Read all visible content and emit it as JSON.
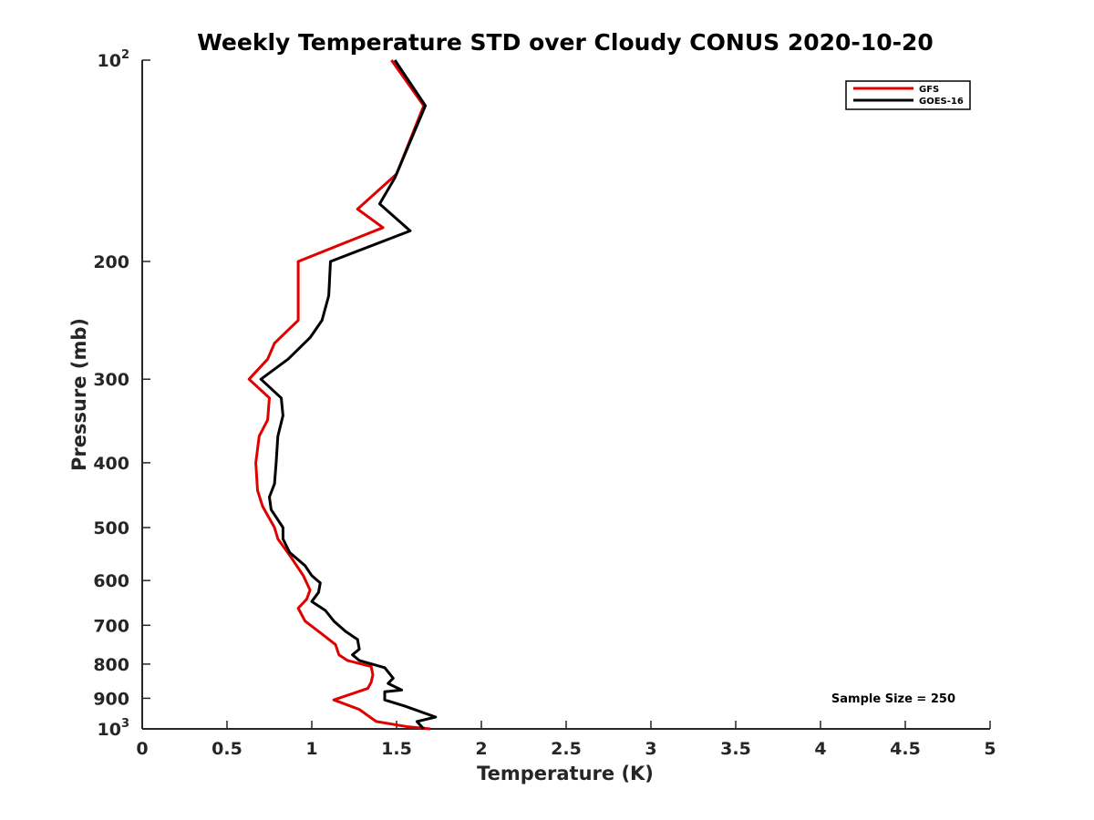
{
  "chart_data": {
    "type": "line",
    "title": "Weekly Temperature STD over Cloudy CONUS 2020-10-20",
    "xlabel": "Temperature (K)",
    "ylabel": "Pressure (mb)",
    "xlim": [
      0,
      5
    ],
    "ylim": [
      100,
      1000
    ],
    "yscale": "log",
    "y_reversed": true,
    "grid": false,
    "legend_position": "top-right",
    "x_ticks": [
      {
        "value": 0,
        "label": "0"
      },
      {
        "value": 0.5,
        "label": "0.5"
      },
      {
        "value": 1,
        "label": "1"
      },
      {
        "value": 1.5,
        "label": "1.5"
      },
      {
        "value": 2,
        "label": "2"
      },
      {
        "value": 2.5,
        "label": "2.5"
      },
      {
        "value": 3,
        "label": "3"
      },
      {
        "value": 3.5,
        "label": "3.5"
      },
      {
        "value": 4,
        "label": "4"
      },
      {
        "value": 4.5,
        "label": "4.5"
      },
      {
        "value": 5,
        "label": "5"
      }
    ],
    "y_ticks": [
      {
        "value": 100,
        "base": "10",
        "exp": "2"
      },
      {
        "value": 200,
        "base": "200",
        "exp": ""
      },
      {
        "value": 300,
        "base": "300",
        "exp": ""
      },
      {
        "value": 400,
        "base": "400",
        "exp": ""
      },
      {
        "value": 500,
        "base": "500",
        "exp": ""
      },
      {
        "value": 600,
        "base": "600",
        "exp": ""
      },
      {
        "value": 700,
        "base": "700",
        "exp": ""
      },
      {
        "value": 800,
        "base": "800",
        "exp": ""
      },
      {
        "value": 900,
        "base": "900",
        "exp": ""
      },
      {
        "value": 1000,
        "base": "10",
        "exp": "3"
      }
    ],
    "series": [
      {
        "name": "GFS",
        "color": "#e00000",
        "points": [
          [
            1.47,
            100
          ],
          [
            1.66,
            117
          ],
          [
            1.5,
            148
          ],
          [
            1.27,
            167
          ],
          [
            1.42,
            178
          ],
          [
            0.92,
            200
          ],
          [
            0.92,
            245
          ],
          [
            0.78,
            265
          ],
          [
            0.74,
            280
          ],
          [
            0.63,
            300
          ],
          [
            0.75,
            320
          ],
          [
            0.74,
            345
          ],
          [
            0.69,
            365
          ],
          [
            0.67,
            400
          ],
          [
            0.68,
            440
          ],
          [
            0.71,
            465
          ],
          [
            0.78,
            500
          ],
          [
            0.8,
            520
          ],
          [
            0.88,
            555
          ],
          [
            0.95,
            590
          ],
          [
            0.99,
            620
          ],
          [
            0.97,
            640
          ],
          [
            0.92,
            660
          ],
          [
            0.96,
            690
          ],
          [
            1.05,
            718
          ],
          [
            1.14,
            748
          ],
          [
            1.16,
            775
          ],
          [
            1.21,
            790
          ],
          [
            1.35,
            807
          ],
          [
            1.36,
            830
          ],
          [
            1.35,
            852
          ],
          [
            1.33,
            870
          ],
          [
            1.13,
            905
          ],
          [
            1.28,
            935
          ],
          [
            1.33,
            955
          ],
          [
            1.38,
            975
          ],
          [
            1.57,
            993
          ],
          [
            1.7,
            1000
          ]
        ]
      },
      {
        "name": "GOES-16",
        "color": "#000000",
        "points": [
          [
            1.49,
            100
          ],
          [
            1.67,
            117
          ],
          [
            1.49,
            150
          ],
          [
            1.4,
            164
          ],
          [
            1.58,
            180
          ],
          [
            1.11,
            200
          ],
          [
            1.1,
            225
          ],
          [
            1.06,
            245
          ],
          [
            0.99,
            260
          ],
          [
            0.86,
            280
          ],
          [
            0.7,
            300
          ],
          [
            0.82,
            320
          ],
          [
            0.83,
            340
          ],
          [
            0.8,
            365
          ],
          [
            0.79,
            400
          ],
          [
            0.78,
            430
          ],
          [
            0.75,
            450
          ],
          [
            0.76,
            470
          ],
          [
            0.83,
            500
          ],
          [
            0.83,
            520
          ],
          [
            0.87,
            545
          ],
          [
            0.96,
            570
          ],
          [
            1.0,
            590
          ],
          [
            1.05,
            605
          ],
          [
            1.04,
            625
          ],
          [
            1.0,
            645
          ],
          [
            1.08,
            665
          ],
          [
            1.13,
            690
          ],
          [
            1.2,
            715
          ],
          [
            1.27,
            735
          ],
          [
            1.28,
            760
          ],
          [
            1.24,
            775
          ],
          [
            1.28,
            790
          ],
          [
            1.43,
            810
          ],
          [
            1.48,
            840
          ],
          [
            1.45,
            855
          ],
          [
            1.53,
            875
          ],
          [
            1.43,
            880
          ],
          [
            1.43,
            905
          ],
          [
            1.55,
            925
          ],
          [
            1.73,
            960
          ],
          [
            1.62,
            975
          ],
          [
            1.66,
            1000
          ]
        ]
      }
    ],
    "annotation": "Sample Size = 250"
  }
}
